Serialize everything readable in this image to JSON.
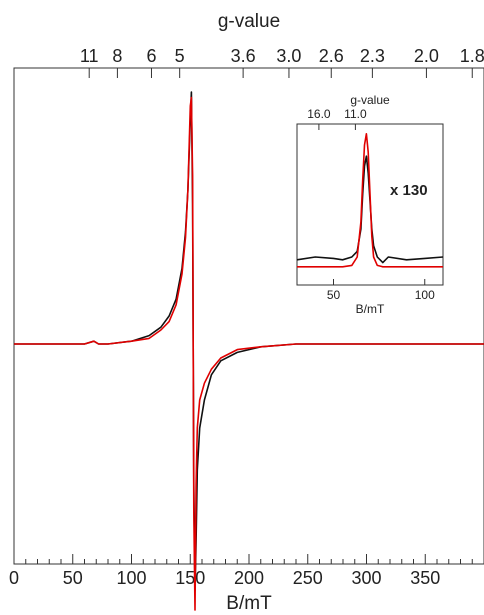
{
  "chart_data": [
    {
      "type": "line",
      "title": "",
      "xlabel": "B/mT",
      "ylabel": "",
      "xlim": [
        0,
        400
      ],
      "grid": false,
      "top_axis": {
        "label": "g-value",
        "ticks": [
          {
            "label": "11",
            "B": 64
          },
          {
            "label": "8",
            "B": 88
          },
          {
            "label": "6",
            "B": 117
          },
          {
            "label": "5",
            "B": 141
          },
          {
            "label": "3.6",
            "B": 195
          },
          {
            "label": "3.0",
            "B": 234
          },
          {
            "label": "2.6",
            "B": 270
          },
          {
            "label": "2.3",
            "B": 305
          },
          {
            "label": "2.0",
            "B": 351
          },
          {
            "label": "1.8",
            "B": 390
          }
        ]
      },
      "x_tick_labels": [
        "0",
        "50",
        "100",
        "150",
        "200",
        "250",
        "300",
        "350"
      ],
      "x_ticks": [
        0,
        50,
        100,
        150,
        200,
        250,
        300,
        350
      ],
      "series": [
        {
          "color": "#111111",
          "x": [
            0,
            60,
            68,
            72,
            80,
            100,
            115,
            125,
            132,
            138,
            143,
            146,
            148,
            150,
            151,
            152,
            153,
            154,
            155,
            156,
            158,
            162,
            168,
            176,
            190,
            210,
            240,
            300,
            400
          ],
          "y": [
            0,
            0,
            0.01,
            0,
            0,
            0.01,
            0.03,
            0.06,
            0.1,
            0.16,
            0.27,
            0.4,
            0.55,
            0.8,
            0.9,
            0.5,
            -0.5,
            -0.88,
            -0.7,
            -0.45,
            -0.3,
            -0.2,
            -0.11,
            -0.06,
            -0.03,
            -0.01,
            0,
            0,
            0
          ]
        },
        {
          "color": "#e00000",
          "x": [
            0,
            60,
            68,
            72,
            80,
            100,
            115,
            125,
            132,
            138,
            143,
            146,
            148,
            150,
            151,
            152,
            153,
            154,
            155,
            156,
            158,
            162,
            168,
            176,
            190,
            210,
            240,
            300,
            400
          ],
          "y": [
            0,
            0,
            0.01,
            0,
            0,
            0.01,
            0.02,
            0.05,
            0.08,
            0.14,
            0.25,
            0.38,
            0.55,
            0.85,
            0.88,
            0.6,
            -0.6,
            -0.95,
            -0.5,
            -0.3,
            -0.2,
            -0.14,
            -0.09,
            -0.05,
            -0.02,
            -0.01,
            0,
            0,
            0
          ]
        }
      ]
    },
    {
      "type": "line",
      "title": "",
      "xlabel": "B/mT",
      "xlim": [
        30,
        110
      ],
      "annotation": "x 130",
      "top_axis": {
        "label": "g-value",
        "ticks": [
          {
            "label": "16.0",
            "B": 42
          },
          {
            "label": "11.0",
            "B": 62
          }
        ]
      },
      "x_tick_labels": [
        "50",
        "100"
      ],
      "x_ticks": [
        50,
        100
      ],
      "series": [
        {
          "color": "#111111",
          "x": [
            30,
            40,
            50,
            55,
            60,
            63,
            65,
            66,
            67,
            68,
            69,
            70,
            71,
            72,
            74,
            77,
            80,
            90,
            100,
            110
          ],
          "y": [
            0.08,
            0.1,
            0.09,
            0.08,
            0.1,
            0.14,
            0.3,
            0.55,
            0.75,
            0.82,
            0.7,
            0.5,
            0.3,
            0.18,
            0.1,
            0.06,
            0.1,
            0.08,
            0.09,
            0.1
          ]
        },
        {
          "color": "#e00000",
          "x": [
            30,
            40,
            50,
            55,
            60,
            63,
            65,
            66,
            67,
            68,
            69,
            70,
            71,
            72,
            74,
            77,
            80,
            90,
            100,
            110
          ],
          "y": [
            0.03,
            0.03,
            0.03,
            0.03,
            0.04,
            0.1,
            0.35,
            0.65,
            0.9,
            0.98,
            0.85,
            0.55,
            0.25,
            0.1,
            0.04,
            0.03,
            0.03,
            0.03,
            0.03,
            0.03
          ]
        }
      ]
    }
  ]
}
